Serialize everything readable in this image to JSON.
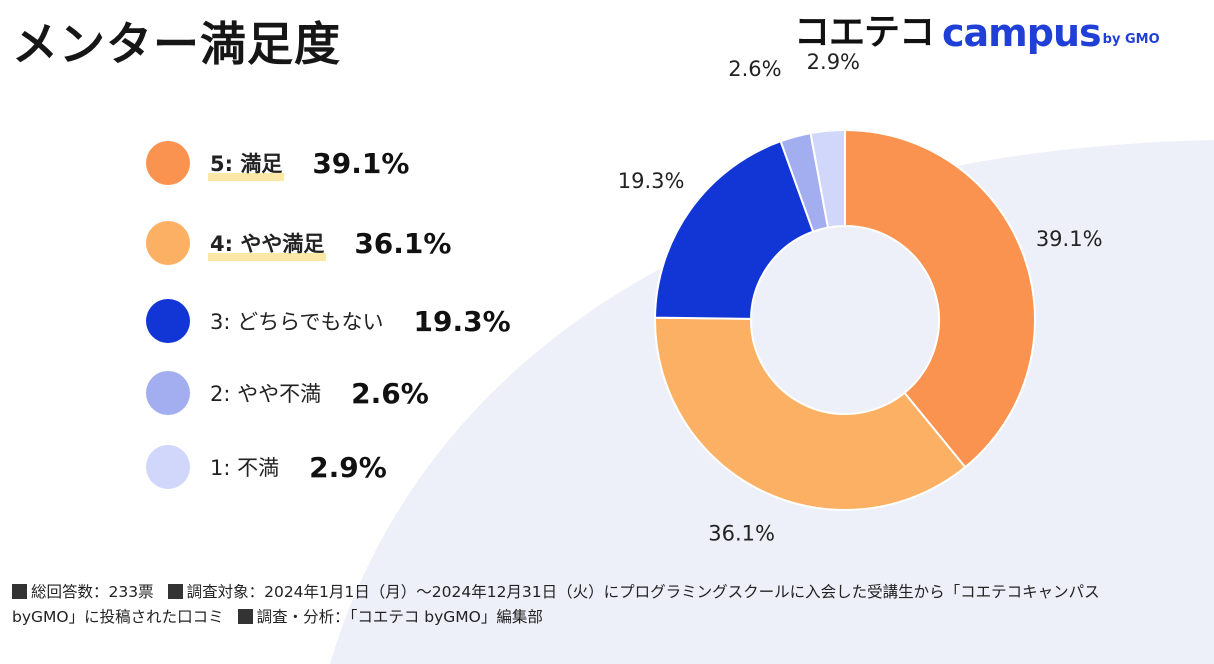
{
  "title": "メンター満足度",
  "logo": {
    "jp": "コエテコ",
    "en": "campus",
    "by": "by GMO"
  },
  "colors": {
    "accent_bg": "#eef0f9",
    "highlight": "#fbe7a6"
  },
  "legend": [
    {
      "label": "5: 満足",
      "value": "39.1%",
      "color": "#fb9350",
      "highlight": true
    },
    {
      "label": "4: やや満足",
      "value": "36.1%",
      "color": "#fcb064",
      "highlight": true
    },
    {
      "label": "3: どちらでもない",
      "value": "19.3%",
      "color": "#1235d6",
      "highlight": false
    },
    {
      "label": "2: やや不満",
      "value": "2.6%",
      "color": "#a3aef0",
      "highlight": false
    },
    {
      "label": "1: 不満",
      "value": "2.9%",
      "color": "#d0d7fa",
      "highlight": false
    }
  ],
  "chart_data": {
    "type": "pie",
    "donut": true,
    "title": "メンター満足度",
    "categories": [
      "5: 満足",
      "4: やや満足",
      "3: どちらでもない",
      "2: やや不満",
      "1: 不満"
    ],
    "values": [
      39.1,
      36.1,
      19.3,
      2.6,
      2.9
    ],
    "data_labels": [
      "39.1%",
      "36.1%",
      "19.3%",
      "2.6%",
      "2.9%"
    ],
    "colors": [
      "#fb9350",
      "#fcb064",
      "#1235d6",
      "#a3aef0",
      "#d0d7fa"
    ],
    "start_angle": "12 o'clock",
    "direction": "clockwise",
    "legend_position": "left"
  },
  "footer": {
    "respondents": "総回答数：233票",
    "target": "調査対象：2024年1月1日（月）〜2024年12月31日（火）にプログラミングスクールに入会した受講生から「コエテコキャンパス byGMO」に投稿された口コミ",
    "analysis": "調査・分析：「コエテコ byGMO」編集部"
  }
}
